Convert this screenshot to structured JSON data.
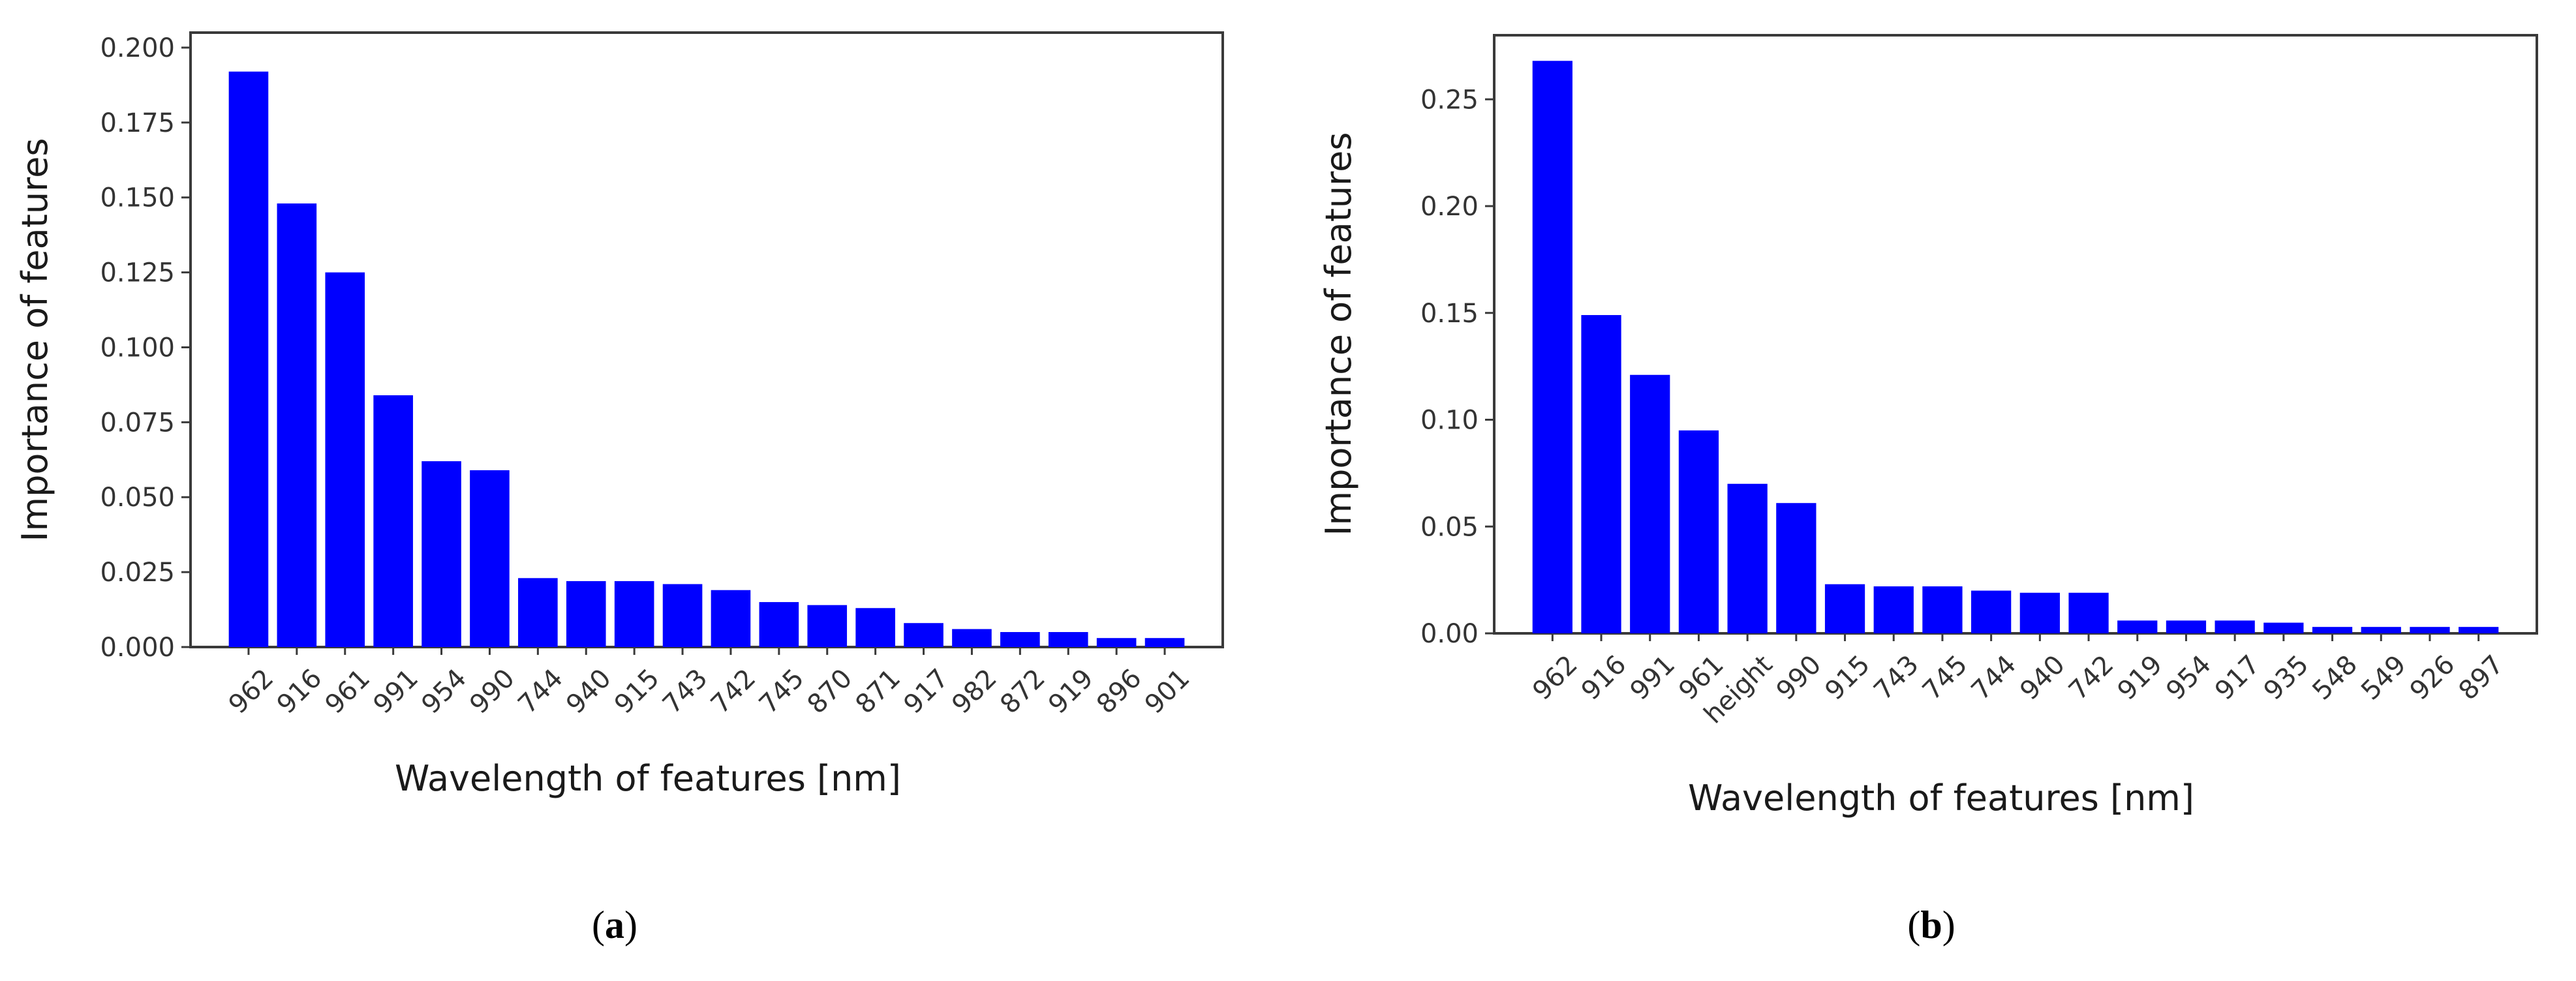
{
  "chart_data": [
    {
      "type": "bar",
      "panel_label_prefix": "(",
      "panel_label_letter": "a",
      "panel_label_suffix": ")",
      "xlabel": "Wavelength of features [nm]",
      "ylabel": "Importance of features",
      "ylim": [
        0,
        0.205
      ],
      "yticks": [
        "0.000",
        "0.025",
        "0.050",
        "0.075",
        "0.100",
        "0.125",
        "0.150",
        "0.175",
        "0.200"
      ],
      "ytick_values": [
        0,
        0.025,
        0.05,
        0.075,
        0.1,
        0.125,
        0.15,
        0.175,
        0.2
      ],
      "categories": [
        "962",
        "916",
        "961",
        "991",
        "954",
        "990",
        "744",
        "940",
        "915",
        "743",
        "742",
        "745",
        "870",
        "871",
        "917",
        "982",
        "872",
        "919",
        "896",
        "901"
      ],
      "values": [
        0.192,
        0.148,
        0.125,
        0.084,
        0.062,
        0.059,
        0.023,
        0.022,
        0.022,
        0.021,
        0.019,
        0.015,
        0.014,
        0.013,
        0.008,
        0.006,
        0.005,
        0.005,
        0.003,
        0.003
      ],
      "bar_color": "#0000ff"
    },
    {
      "type": "bar",
      "panel_label_prefix": "(",
      "panel_label_letter": "b",
      "panel_label_suffix": ")",
      "xlabel": "Wavelength of features [nm]",
      "ylabel": "Importance of features",
      "ylim": [
        0,
        0.28
      ],
      "yticks": [
        "0.00",
        "0.05",
        "0.10",
        "0.15",
        "0.20",
        "0.25"
      ],
      "ytick_values": [
        0,
        0.05,
        0.1,
        0.15,
        0.2,
        0.25
      ],
      "categories": [
        "962",
        "916",
        "991",
        "961",
        "height",
        "990",
        "915",
        "743",
        "745",
        "744",
        "940",
        "742",
        "919",
        "954",
        "917",
        "935",
        "548",
        "549",
        "926",
        "897"
      ],
      "values": [
        0.268,
        0.149,
        0.121,
        0.095,
        0.07,
        0.061,
        0.023,
        0.022,
        0.022,
        0.02,
        0.019,
        0.019,
        0.006,
        0.006,
        0.006,
        0.005,
        0.003,
        0.003,
        0.003,
        0.003
      ],
      "bar_color": "#0000ff"
    }
  ]
}
